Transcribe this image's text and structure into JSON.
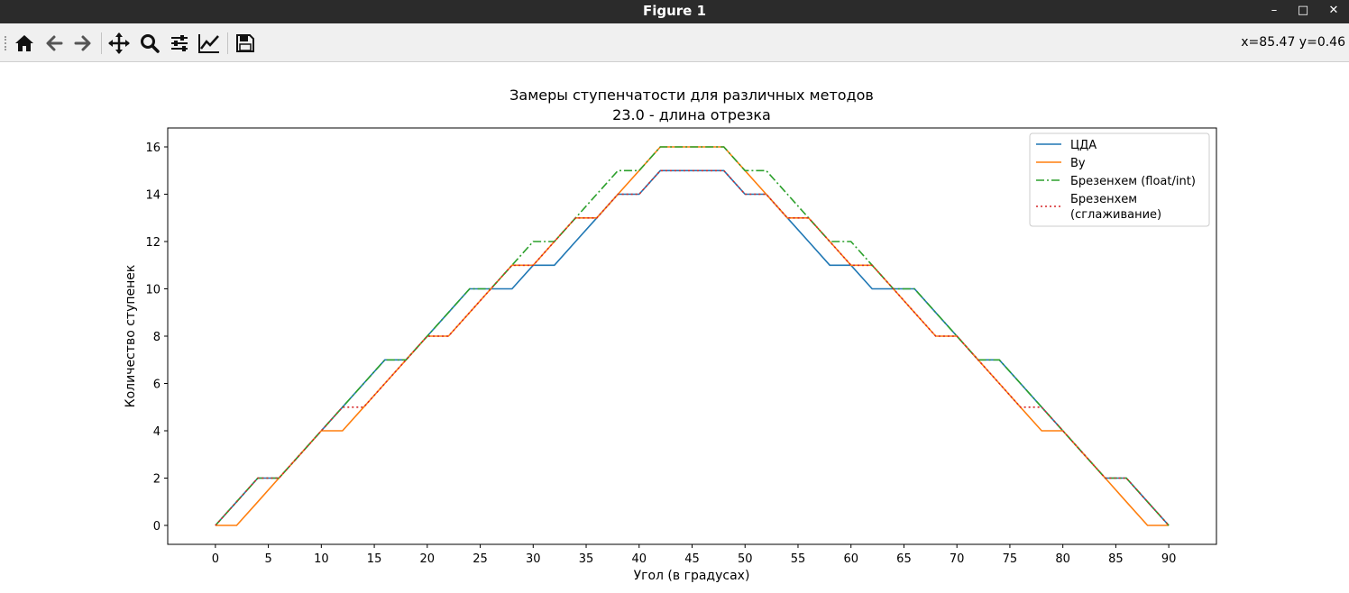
{
  "window": {
    "title": "Figure 1"
  },
  "window_controls": {
    "minimize": "–",
    "maximize": "□",
    "close": "✕"
  },
  "toolbar": {
    "tools": [
      "home-icon",
      "back-arrow-icon",
      "forward-arrow-icon",
      "pan-icon",
      "zoom-icon",
      "configure-subplots-icon",
      "edit-axes-icon",
      "save-icon"
    ],
    "coords": "x=85.47 y=0.46"
  },
  "chart_data": {
    "type": "line",
    "title": "Замеры ступенчатости для различных методов",
    "subtitle": "23.0 - длина отрезка",
    "xlabel": "Угол (в градусах)",
    "ylabel": "Количество ступенек",
    "xlim": [
      -4.5,
      94.5
    ],
    "ylim": [
      -0.8,
      16.8
    ],
    "xticks": [
      0,
      5,
      10,
      15,
      20,
      25,
      30,
      35,
      40,
      45,
      50,
      55,
      60,
      65,
      70,
      75,
      80,
      85,
      90
    ],
    "yticks": [
      0,
      2,
      4,
      6,
      8,
      10,
      12,
      14,
      16
    ],
    "grid": false,
    "legend_position": "top-right",
    "x": [
      0,
      2,
      4,
      6,
      8,
      10,
      12,
      14,
      16,
      18,
      20,
      22,
      24,
      26,
      28,
      30,
      32,
      34,
      36,
      38,
      40,
      42,
      44,
      46,
      48,
      50,
      52,
      54,
      56,
      58,
      60,
      62,
      64,
      66,
      68,
      70,
      72,
      74,
      76,
      78,
      80,
      82,
      84,
      86,
      88,
      90
    ],
    "series": [
      {
        "name": "ЦДА",
        "color": "#1f77b4",
        "style": "solid",
        "values": [
          0,
          1,
          2,
          2,
          3,
          4,
          5,
          6,
          7,
          7,
          8,
          9,
          10,
          10,
          10,
          11,
          11,
          12,
          13,
          14,
          14,
          15,
          15,
          15,
          15,
          14,
          14,
          13,
          12,
          11,
          11,
          10,
          10,
          10,
          9,
          8,
          7,
          7,
          6,
          5,
          4,
          3,
          2,
          2,
          1,
          0
        ]
      },
      {
        "name": "Ву",
        "color": "#ff7f0e",
        "style": "solid",
        "values": [
          0,
          0,
          1,
          2,
          3,
          4,
          4,
          5,
          6,
          7,
          8,
          8,
          9,
          10,
          11,
          11,
          12,
          13,
          13,
          14,
          15,
          16,
          16,
          16,
          16,
          15,
          14,
          13,
          13,
          12,
          11,
          11,
          10,
          9,
          8,
          8,
          7,
          6,
          5,
          4,
          4,
          3,
          2,
          1,
          0,
          0
        ]
      },
      {
        "name": "Брезенхем (float/int)",
        "color": "#2ca02c",
        "style": "dashdot",
        "values": [
          0,
          1,
          2,
          2,
          3,
          4,
          5,
          6,
          7,
          7,
          8,
          9,
          10,
          10,
          11,
          12,
          12,
          13,
          14,
          15,
          15,
          16,
          16,
          16,
          16,
          15,
          15,
          14,
          13,
          12,
          12,
          11,
          10,
          10,
          9,
          8,
          7,
          7,
          6,
          5,
          4,
          3,
          2,
          2,
          1,
          0
        ]
      },
      {
        "name": "Брезенхем\n(сглаживание)",
        "color": "#d62728",
        "style": "dotted",
        "values": [
          0,
          1,
          2,
          2,
          3,
          4,
          5,
          5,
          6,
          7,
          8,
          8,
          9,
          10,
          11,
          11,
          12,
          13,
          13,
          14,
          14,
          15,
          15,
          15,
          15,
          14,
          14,
          13,
          13,
          12,
          11,
          11,
          10,
          9,
          8,
          8,
          7,
          6,
          5,
          5,
          4,
          3,
          2,
          2,
          1,
          0
        ]
      }
    ]
  }
}
